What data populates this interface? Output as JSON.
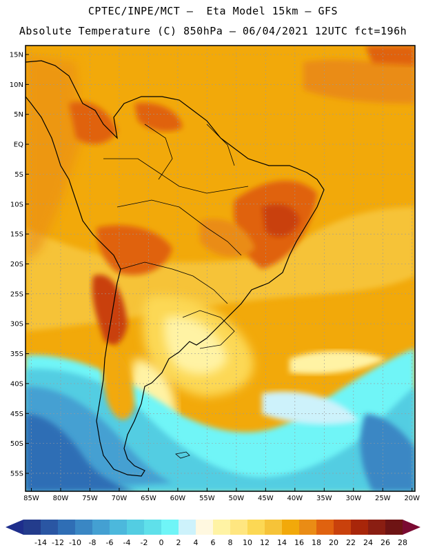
{
  "header": {
    "title_line1": "CPTEC/INPE/MCT –  Eta Model 15km – GFS",
    "title_line2": "Absolute Temperature (C) 850hPa – 06/04/2021 12UTC fct=196h"
  },
  "map": {
    "lat_labels": [
      "15N",
      "10N",
      "5N",
      "EQ",
      "5S",
      "10S",
      "15S",
      "20S",
      "25S",
      "30S",
      "35S",
      "40S",
      "45S",
      "50S",
      "55S"
    ],
    "lon_labels": [
      "85W",
      "80W",
      "75W",
      "70W",
      "65W",
      "60W",
      "55W",
      "50W",
      "45W",
      "40W",
      "35W",
      "30W",
      "25W",
      "20W"
    ],
    "region": "South America",
    "lon_range": [
      -86,
      -19.5
    ],
    "lat_range": [
      16.5,
      -58
    ]
  },
  "colorbar": {
    "ticks": [
      "-14",
      "-12",
      "-10",
      "-8",
      "-6",
      "-4",
      "-2",
      "0",
      "2",
      "4",
      "6",
      "8",
      "10",
      "12",
      "14",
      "16",
      "18",
      "20",
      "22",
      "24",
      "26",
      "28"
    ],
    "colors": [
      "#233c8c",
      "#2a56a3",
      "#2f6eb5",
      "#3a87c4",
      "#44a0d2",
      "#4cb8dc",
      "#53cde2",
      "#5fe0ea",
      "#6ff5f7",
      "#cdf2fb",
      "#fff8e0",
      "#fff3a4",
      "#ffe680",
      "#fcd854",
      "#f6c338",
      "#f2a90a",
      "#ea8c15",
      "#e0620f",
      "#c9410c",
      "#a8260a",
      "#8a1e12",
      "#6e1414"
    ],
    "low_arrow_color": "#1e2e8c",
    "high_arrow_color": "#7a0a32"
  }
}
